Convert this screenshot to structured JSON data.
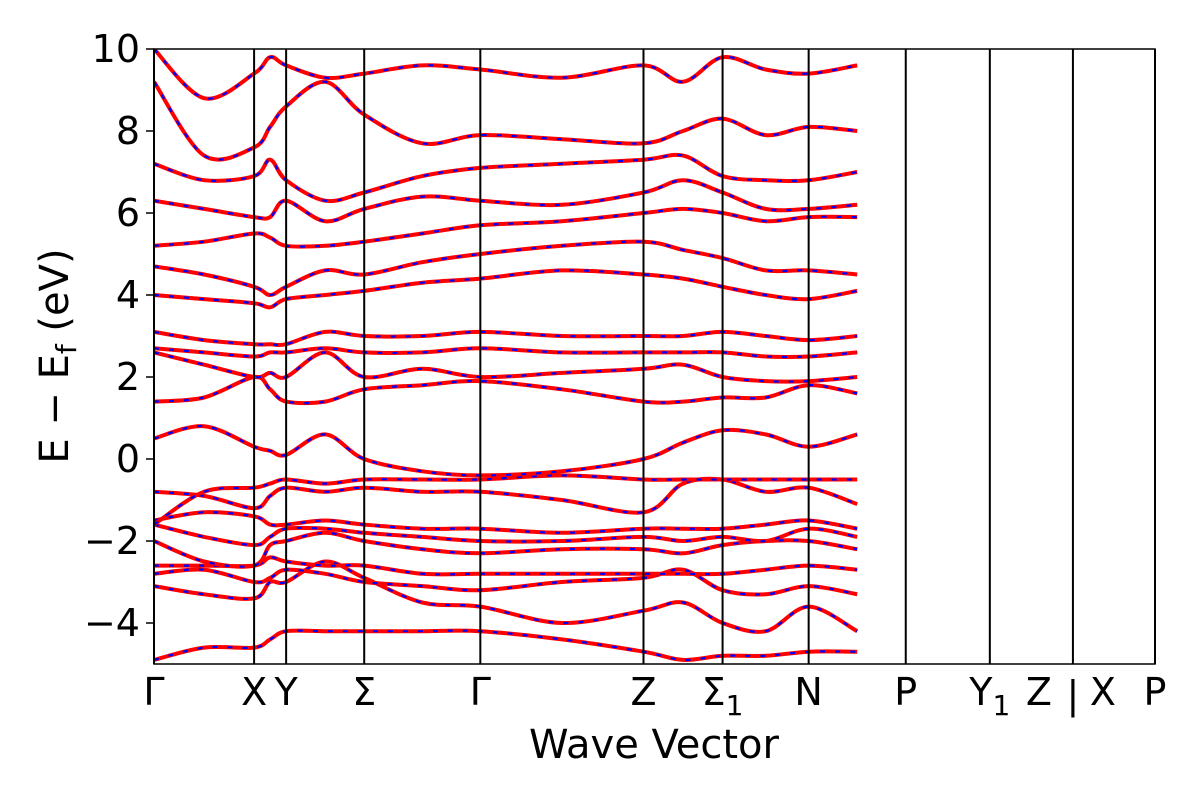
{
  "chart_data": {
    "type": "line",
    "title": "",
    "xlabel": "Wave Vector",
    "ylabel": "E − E_f (eV)",
    "ylabel_main": "E − E",
    "ylabel_sub": "f",
    "ylabel_tail": " (eV)",
    "ylim": [
      -5,
      10
    ],
    "yticks": [
      10,
      8,
      6,
      4,
      2,
      0,
      -2,
      -4
    ],
    "ytick_labels": [
      "10",
      "8",
      "6",
      "4",
      "2",
      "0",
      "−2",
      "−4"
    ],
    "grid": false,
    "colors": {
      "primary": "#ff0000",
      "secondary": "#0000ff",
      "vlines": "#000000"
    },
    "kpoints": [
      {
        "label": "Γ",
        "sub": "",
        "x": 0.0
      },
      {
        "label": "X",
        "sub": "",
        "x": 0.1
      },
      {
        "label": "Y",
        "sub": "",
        "x": 0.132
      },
      {
        "label": "Σ",
        "sub": "",
        "x": 0.21
      },
      {
        "label": "Γ",
        "sub": "",
        "x": 0.326
      },
      {
        "label": "Z",
        "sub": "",
        "x": 0.489
      },
      {
        "label": "Σ",
        "sub": "1",
        "x": 0.568
      },
      {
        "label": "N",
        "sub": "",
        "x": 0.654
      },
      {
        "label": "P",
        "sub": "",
        "x": 0.751
      },
      {
        "label": "Y",
        "sub": "1",
        "x": 0.835
      },
      {
        "label": "Z",
        "sub": "",
        "x": 0.918
      },
      {
        "label": "X",
        "sub": "",
        "x": 0.918
      },
      {
        "label": "P",
        "sub": "",
        "x": 1.0
      }
    ],
    "break_mark": "|",
    "series": [
      {
        "values": [
          -4.9,
          -4.6,
          -4.6,
          -4.4,
          -4.2,
          -4.2,
          -4.2,
          -4.2,
          -4.2,
          -4.4,
          -4.7,
          -4.9,
          -4.8,
          -4.8,
          -4.7,
          -4.7
        ]
      },
      {
        "values": [
          -3.1,
          -3.3,
          -3.4,
          -3.0,
          -3.0,
          -2.5,
          -2.9,
          -3.5,
          -3.6,
          -4.0,
          -3.7,
          -3.5,
          -4.0,
          -4.2,
          -3.6,
          -4.2
        ]
      },
      {
        "values": [
          -2.8,
          -2.7,
          -3.0,
          -2.9,
          -2.7,
          -2.8,
          -3.0,
          -3.1,
          -3.2,
          -3.0,
          -2.9,
          -2.7,
          -3.2,
          -3.3,
          -3.1,
          -3.3
        ]
      },
      {
        "values": [
          -2.6,
          -2.6,
          -2.6,
          -2.4,
          -2.5,
          -2.6,
          -2.6,
          -2.8,
          -2.8,
          -2.8,
          -2.8,
          -2.8,
          -2.8,
          -2.7,
          -2.6,
          -2.7
        ]
      },
      {
        "values": [
          -2.0,
          -2.5,
          -2.6,
          -2.1,
          -2.0,
          -1.8,
          -2.0,
          -2.2,
          -2.3,
          -2.2,
          -2.2,
          -2.3,
          -2.1,
          -2.0,
          -2.0,
          -2.2
        ]
      },
      {
        "values": [
          -1.6,
          -1.9,
          -2.1,
          -1.9,
          -1.7,
          -1.7,
          -1.8,
          -1.9,
          -2.0,
          -2.0,
          -1.9,
          -2.0,
          -1.9,
          -2.0,
          -1.7,
          -1.9
        ]
      },
      {
        "values": [
          -1.5,
          -1.3,
          -1.4,
          -1.6,
          -1.6,
          -1.5,
          -1.6,
          -1.7,
          -1.7,
          -1.8,
          -1.7,
          -1.7,
          -1.7,
          -1.6,
          -1.5,
          -1.7
        ]
      },
      {
        "values": [
          -0.8,
          -0.9,
          -1.2,
          -0.9,
          -0.7,
          -0.8,
          -0.7,
          -0.8,
          -0.8,
          -1.0,
          -1.3,
          -0.6,
          -0.5,
          -0.8,
          -0.7,
          -1.1
        ]
      },
      {
        "values": [
          -1.6,
          -0.8,
          -0.7,
          -0.6,
          -0.5,
          -0.6,
          -0.5,
          -0.5,
          -0.5,
          -0.4,
          -0.5,
          -0.5,
          -0.5,
          -0.5,
          -0.5,
          -0.5
        ]
      },
      {
        "values": [
          0.5,
          0.8,
          0.3,
          0.2,
          0.1,
          0.6,
          0.0,
          -0.3,
          -0.4,
          -0.3,
          0.0,
          0.4,
          0.7,
          0.6,
          0.3,
          0.6
        ]
      },
      {
        "values": [
          1.4,
          1.5,
          2.0,
          1.7,
          1.4,
          1.4,
          1.7,
          1.8,
          1.9,
          1.7,
          1.4,
          1.4,
          1.5,
          1.5,
          1.8,
          1.6
        ]
      },
      {
        "values": [
          2.6,
          2.3,
          2.0,
          2.1,
          2.0,
          2.6,
          2.0,
          2.2,
          2.0,
          2.1,
          2.2,
          2.3,
          2.0,
          1.9,
          1.9,
          2.0
        ]
      },
      {
        "values": [
          2.7,
          2.6,
          2.5,
          2.6,
          2.6,
          2.7,
          2.6,
          2.6,
          2.7,
          2.6,
          2.6,
          2.6,
          2.6,
          2.5,
          2.5,
          2.6
        ]
      },
      {
        "values": [
          3.1,
          2.9,
          2.8,
          2.8,
          2.8,
          3.1,
          3.0,
          3.0,
          3.1,
          3.0,
          3.0,
          3.0,
          3.1,
          3.0,
          2.9,
          3.0
        ]
      },
      {
        "values": [
          4.0,
          3.9,
          3.8,
          3.7,
          3.9,
          4.0,
          4.1,
          4.3,
          4.4,
          4.6,
          4.5,
          4.4,
          4.2,
          4.0,
          3.9,
          4.1
        ]
      },
      {
        "values": [
          4.7,
          4.5,
          4.2,
          4.0,
          4.2,
          4.6,
          4.5,
          4.8,
          5.0,
          5.2,
          5.3,
          5.1,
          4.9,
          4.6,
          4.6,
          4.5
        ]
      },
      {
        "values": [
          5.2,
          5.3,
          5.5,
          5.4,
          5.2,
          5.2,
          5.3,
          5.5,
          5.7,
          5.8,
          6.0,
          6.1,
          6.0,
          5.8,
          5.9,
          5.9
        ]
      },
      {
        "values": [
          6.3,
          6.1,
          5.9,
          5.9,
          6.3,
          5.8,
          6.1,
          6.4,
          6.3,
          6.2,
          6.5,
          6.8,
          6.5,
          6.1,
          6.1,
          6.2
        ]
      },
      {
        "values": [
          7.2,
          6.8,
          6.9,
          7.3,
          6.8,
          6.3,
          6.5,
          6.9,
          7.1,
          7.2,
          7.3,
          7.4,
          6.9,
          6.8,
          6.8,
          7.0
        ]
      },
      {
        "values": [
          9.2,
          7.4,
          7.6,
          8.1,
          8.6,
          9.2,
          8.4,
          7.7,
          7.9,
          7.8,
          7.7,
          8.0,
          8.3,
          7.9,
          8.1,
          8.0
        ]
      },
      {
        "values": [
          10.0,
          8.8,
          9.4,
          9.8,
          9.6,
          9.3,
          9.4,
          9.6,
          9.5,
          9.3,
          9.6,
          9.2,
          9.8,
          9.5,
          9.4,
          9.6
        ]
      }
    ]
  }
}
